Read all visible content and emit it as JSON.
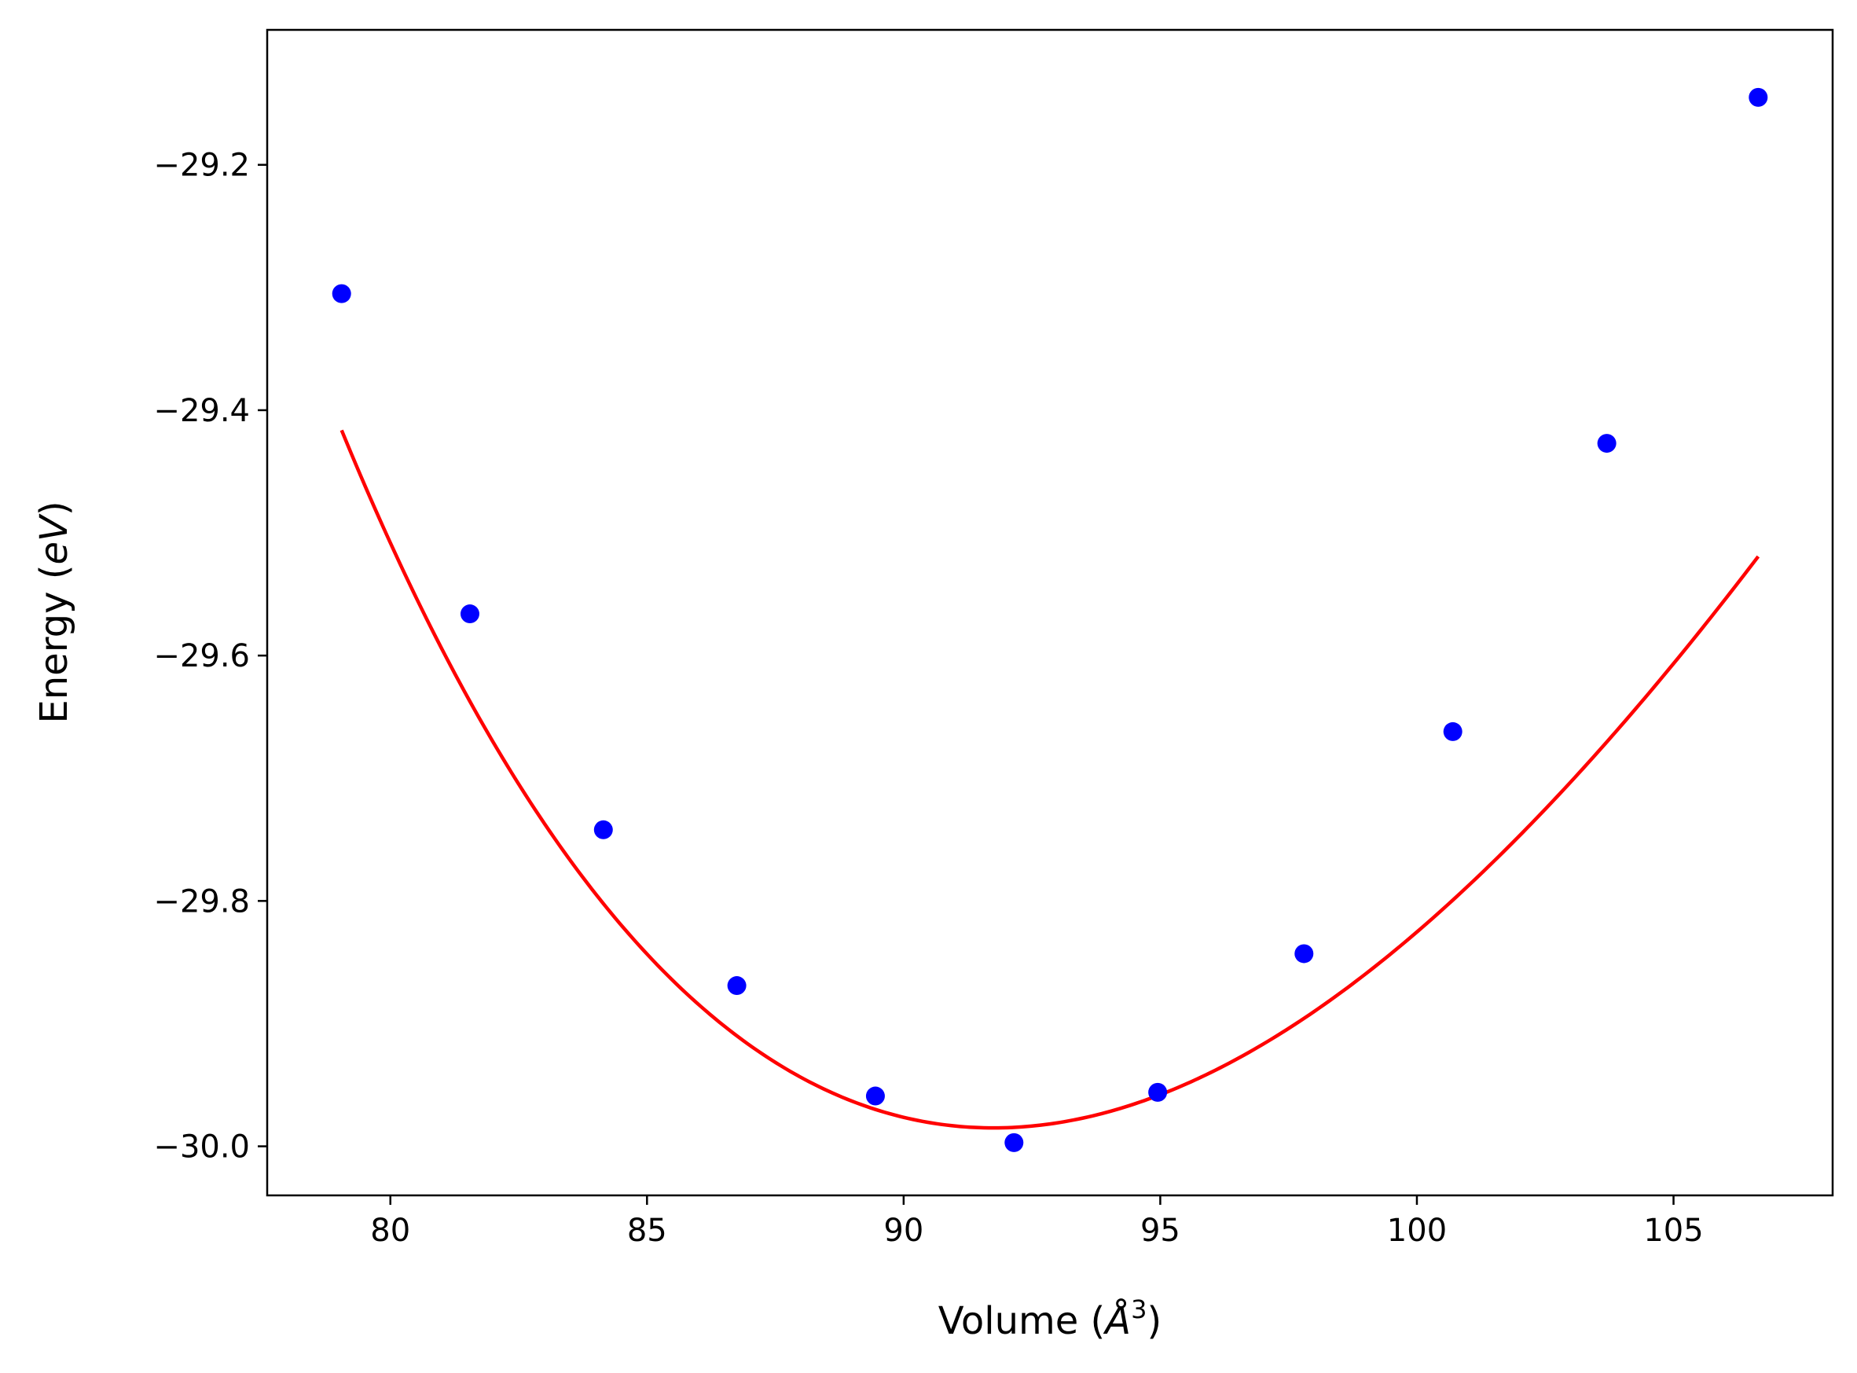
{
  "chart_data": {
    "type": "scatter",
    "title": "",
    "xlabel_prefix": "Volume (",
    "xlabel_unit": "Å",
    "xlabel_exp": "3",
    "xlabel_suffix": ")",
    "ylabel_prefix": "Energy (",
    "ylabel_unit": "eV",
    "ylabel_suffix": ")",
    "xlim": [
      77.6,
      108.1
    ],
    "ylim": [
      -30.04,
      -29.09
    ],
    "xticks": [
      80,
      85,
      90,
      95,
      100,
      105
    ],
    "yticks": [
      -30.0,
      -29.8,
      -29.6,
      -29.4,
      -29.2
    ],
    "ytick_labels": [
      "−30.0",
      "−29.8",
      "−29.6",
      "−29.4",
      "−29.2"
    ],
    "grid": false,
    "series": [
      {
        "kind": "points",
        "color": "#0000ff",
        "x": [
          79.05,
          81.55,
          84.15,
          86.75,
          89.45,
          92.15,
          94.95,
          97.8,
          100.7,
          103.7,
          106.65
        ],
        "y": [
          -29.305,
          -29.566,
          -29.742,
          -29.869,
          -29.959,
          -29.997,
          -29.956,
          -29.843,
          -29.662,
          -29.427,
          -29.145
        ]
      },
      {
        "kind": "fit",
        "color": "#ff0000",
        "vmin": 79.05,
        "vmax": 106.65,
        "e0": -29.985,
        "v0": 91.75,
        "b0": 0.5,
        "bp": 4.2
      }
    ]
  }
}
